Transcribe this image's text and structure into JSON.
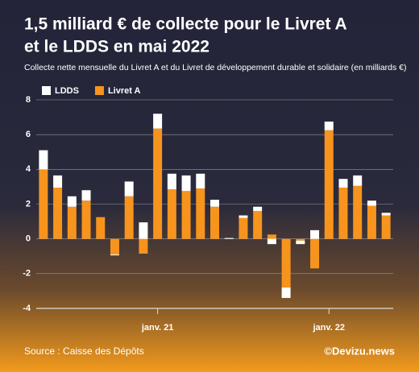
{
  "chart_data": {
    "type": "stacked_bar",
    "title": [
      "1,5 milliard € de collecte pour le Livret A",
      "et le LDDS en mai 2022"
    ],
    "subtitle": "Collecte nette mensuelle du Livret A et du Livret de développement durable et solidaire (en milliards €)",
    "source": "Source : Caisse des Dépôts",
    "credit": "©Devizu.news",
    "categories": [
      null,
      null,
      null,
      null,
      null,
      null,
      null,
      null,
      "janv. 21",
      null,
      null,
      null,
      null,
      null,
      null,
      null,
      null,
      null,
      null,
      null,
      "janv. 22",
      null,
      null,
      null,
      null
    ],
    "series": [
      {
        "name": "LDDS",
        "color": "#ffffff",
        "values": [
          1.1,
          0.7,
          0.6,
          0.6,
          0,
          -0.05,
          0.85,
          0.95,
          0.85,
          0.9,
          0.9,
          0.85,
          0.4,
          0.05,
          0.15,
          0.25,
          -0.3,
          -0.6,
          -0.2,
          0.5,
          0.5,
          0.5,
          0.6,
          0.3,
          0.15
        ]
      },
      {
        "name": "Livret A",
        "color": "#f7941d",
        "values": [
          4.0,
          2.95,
          1.85,
          2.2,
          1.25,
          -0.9,
          2.45,
          -0.85,
          6.35,
          2.85,
          2.75,
          2.9,
          1.85,
          0,
          1.2,
          1.6,
          0.25,
          -2.8,
          -0.1,
          -1.7,
          6.25,
          2.95,
          3.05,
          1.9,
          1.35
        ]
      }
    ],
    "ylim": [
      -4,
      8
    ],
    "yticks": [
      -4,
      -2,
      0,
      2,
      4,
      6,
      8
    ],
    "grid": true,
    "legend": "top-left"
  }
}
